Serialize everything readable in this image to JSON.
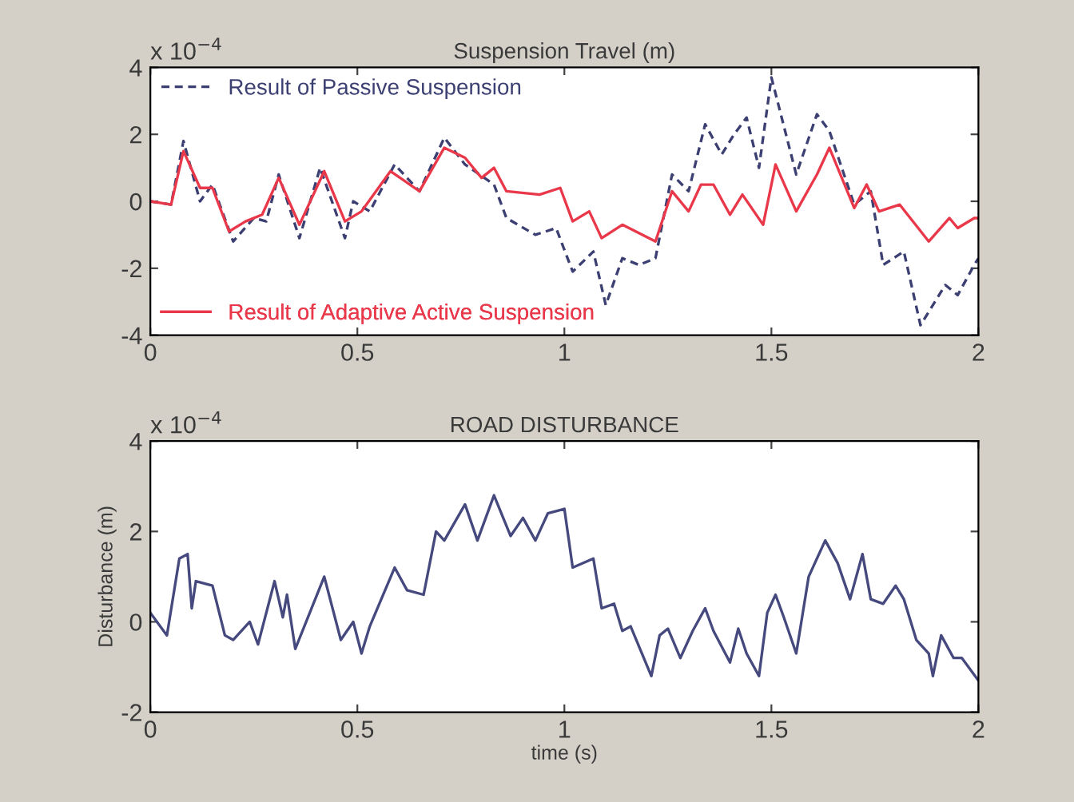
{
  "chart_data": [
    {
      "type": "line",
      "title": "Suspension Travel (m)",
      "annotations": [
        "x 10$^{−4}$"
      ],
      "xlim": [
        0,
        2
      ],
      "xticks": [
        0,
        0.5,
        1,
        1.5,
        2
      ],
      "ylim": [
        -4,
        4
      ],
      "yticks": [
        -4,
        -2,
        0,
        2,
        4
      ],
      "grid": false,
      "legend": "left",
      "series": [
        {
          "name": "Result of Passive Suspension",
          "color": "#3c3f72",
          "line_style": "dotted",
          "x": [
            0,
            0.05,
            0.08,
            0.12,
            0.15,
            0.2,
            0.25,
            0.28,
            0.31,
            0.36,
            0.41,
            0.47,
            0.49,
            0.53,
            0.59,
            0.65,
            0.71,
            0.76,
            0.83,
            0.86,
            0.93,
            0.98,
            1.02,
            1.07,
            1.1,
            1.14,
            1.18,
            1.22,
            1.26,
            1.3,
            1.34,
            1.38,
            1.41,
            1.44,
            1.47,
            1.5,
            1.56,
            1.61,
            1.64,
            1.7,
            1.74,
            1.77,
            1.82,
            1.86,
            1.92,
            1.95,
            1.99,
            2
          ],
          "values": [
            0,
            -0.1,
            1.8,
            0.0,
            0.5,
            -1.2,
            -0.5,
            -0.6,
            0.8,
            -1.1,
            1.0,
            -1.1,
            0.0,
            -0.3,
            1.1,
            0.3,
            1.9,
            1.1,
            0.5,
            -0.5,
            -1.0,
            -0.8,
            -2.1,
            -1.5,
            -3.1,
            -1.7,
            -1.9,
            -1.7,
            0.8,
            0.3,
            2.3,
            1.4,
            2.0,
            2.5,
            1.0,
            3.7,
            0.8,
            2.6,
            2.1,
            -0.1,
            0.3,
            -1.9,
            -1.5,
            -3.7,
            -2.5,
            -2.8,
            -1.9,
            -1.7
          ]
        },
        {
          "name": "Result of Adaptive Active Suspension",
          "color": "#e8384a",
          "line_style": "solid",
          "x": [
            0,
            0.05,
            0.08,
            0.12,
            0.15,
            0.19,
            0.23,
            0.27,
            0.31,
            0.36,
            0.42,
            0.47,
            0.51,
            0.58,
            0.65,
            0.71,
            0.76,
            0.8,
            0.83,
            0.86,
            0.94,
            0.99,
            1.02,
            1.06,
            1.09,
            1.14,
            1.22,
            1.26,
            1.3,
            1.33,
            1.36,
            1.4,
            1.43,
            1.48,
            1.51,
            1.56,
            1.61,
            1.64,
            1.7,
            1.73,
            1.76,
            1.81,
            1.88,
            1.93,
            1.95,
            1.99,
            2
          ],
          "values": [
            0,
            -0.1,
            1.5,
            0.4,
            0.4,
            -0.9,
            -0.6,
            -0.4,
            0.7,
            -0.7,
            0.9,
            -0.6,
            -0.3,
            0.9,
            0.3,
            1.6,
            1.3,
            0.7,
            1.0,
            0.3,
            0.2,
            0.4,
            -0.6,
            -0.3,
            -1.1,
            -0.7,
            -1.2,
            0.3,
            -0.3,
            0.5,
            0.5,
            -0.4,
            0.2,
            -0.7,
            1.1,
            -0.3,
            0.8,
            1.6,
            -0.2,
            0.5,
            -0.3,
            -0.1,
            -1.2,
            -0.5,
            -0.8,
            -0.5,
            -0.5
          ]
        }
      ]
    },
    {
      "type": "line",
      "title": "ROAD DISTURBANCE",
      "xlabel": "time (s)",
      "ylabel": "Disturbance (m)",
      "annotations": [
        "x 10$^{−4}$"
      ],
      "xlim": [
        0,
        2
      ],
      "xticks": [
        0,
        0.5,
        1,
        1.5,
        2
      ],
      "ylim": [
        -2,
        4
      ],
      "yticks": [
        -2,
        0,
        2,
        4
      ],
      "grid": false,
      "series": [
        {
          "color": "#45497e",
          "line_style": "solid",
          "x": [
            0,
            0.04,
            0.07,
            0.09,
            0.1,
            0.11,
            0.15,
            0.18,
            0.2,
            0.24,
            0.26,
            0.3,
            0.32,
            0.33,
            0.35,
            0.42,
            0.46,
            0.49,
            0.51,
            0.53,
            0.59,
            0.62,
            0.66,
            0.69,
            0.71,
            0.76,
            0.79,
            0.83,
            0.87,
            0.9,
            0.93,
            0.96,
            1.0,
            1.02,
            1.07,
            1.09,
            1.12,
            1.14,
            1.16,
            1.21,
            1.23,
            1.25,
            1.28,
            1.31,
            1.34,
            1.36,
            1.4,
            1.42,
            1.44,
            1.47,
            1.49,
            1.51,
            1.53,
            1.56,
            1.59,
            1.63,
            1.66,
            1.69,
            1.72,
            1.74,
            1.77,
            1.8,
            1.82,
            1.85,
            1.88,
            1.89,
            1.91,
            1.94,
            1.96,
            2.0
          ],
          "values": [
            0.2,
            -0.3,
            1.4,
            1.5,
            0.3,
            0.9,
            0.8,
            -0.3,
            -0.4,
            0.0,
            -0.5,
            0.9,
            0.1,
            0.6,
            -0.6,
            1.0,
            -0.4,
            0.0,
            -0.7,
            -0.1,
            1.2,
            0.7,
            0.6,
            2.0,
            1.8,
            2.6,
            1.8,
            2.8,
            1.9,
            2.3,
            1.8,
            2.4,
            2.5,
            1.2,
            1.4,
            0.3,
            0.4,
            -0.2,
            -0.1,
            -1.2,
            -0.3,
            -0.15,
            -0.8,
            -0.2,
            0.3,
            -0.2,
            -0.9,
            -0.15,
            -0.7,
            -1.2,
            0.2,
            0.6,
            0.1,
            -0.7,
            1.0,
            1.8,
            1.3,
            0.5,
            1.5,
            0.5,
            0.4,
            0.8,
            0.5,
            -0.4,
            -0.7,
            -1.2,
            -0.3,
            -0.8,
            -0.8,
            -1.3
          ]
        }
      ]
    }
  ]
}
